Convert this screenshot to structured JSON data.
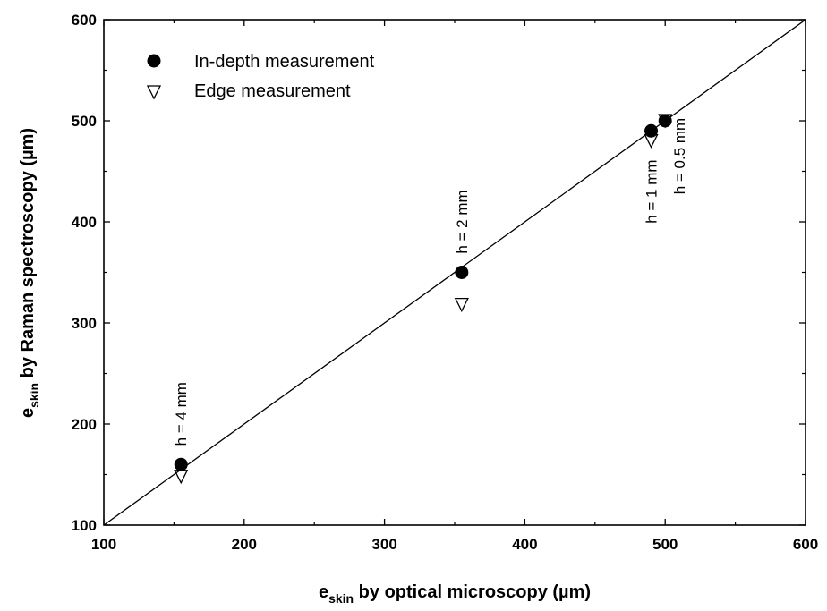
{
  "chart_data": {
    "type": "scatter",
    "xlabel": {
      "main": "e",
      "sub": "skin",
      "rest": " by optical microscopy (µm)"
    },
    "ylabel": {
      "main": "e",
      "sub": "skin",
      "rest": " by Raman spectroscopy (µm)"
    },
    "xlim": [
      100,
      600
    ],
    "ylim": [
      100,
      600
    ],
    "xticks": [
      "100",
      "200",
      "300",
      "400",
      "500",
      "600"
    ],
    "yticks": [
      "100",
      "200",
      "300",
      "400",
      "500",
      "600"
    ],
    "grid": false,
    "legend_position": "top-left",
    "reference_line": {
      "x": [
        100,
        600
      ],
      "y": [
        100,
        600
      ]
    },
    "series": [
      {
        "name": "In-depth measurement",
        "marker": "filled-circle",
        "x": [
          155,
          355,
          490,
          500
        ],
        "y": [
          160,
          350,
          490,
          500
        ]
      },
      {
        "name": "Edge measurement",
        "marker": "open-triangle-down",
        "x": [
          155,
          355,
          490,
          500
        ],
        "y": [
          148,
          318,
          480,
          500
        ]
      }
    ],
    "annotations": [
      {
        "text": "h = 4 mm",
        "x": 155,
        "y": 210
      },
      {
        "text": "h = 2 mm",
        "x": 355,
        "y": 400
      },
      {
        "text": "h = 1 mm",
        "x": 490,
        "y": 430
      },
      {
        "text": "h = 0.5 mm",
        "x": 510,
        "y": 465
      }
    ]
  }
}
